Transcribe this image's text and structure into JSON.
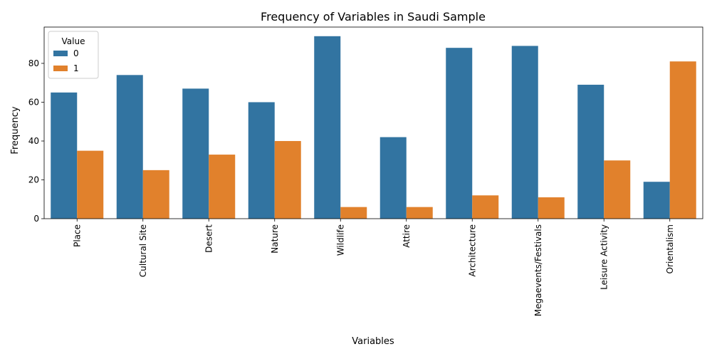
{
  "chart_data": {
    "type": "bar",
    "title": "Frequency of Variables in Saudi Sample",
    "xlabel": "Variables",
    "ylabel": "Frequency",
    "ylim": [
      0,
      98.7
    ],
    "yticks": [
      0,
      20,
      40,
      60,
      80
    ],
    "categories": [
      "Place",
      "Cultural Site",
      "Desert",
      "Nature",
      "Wildlife",
      "Attire",
      "Architecture",
      "Megaevents/Festivals",
      "Leisure Activity",
      "Orientalism"
    ],
    "legend": {
      "title": "Value",
      "placement": "top-left"
    },
    "grid": false,
    "series": [
      {
        "name": "0",
        "color": "#3274a1",
        "values": [
          65,
          74,
          67,
          60,
          94,
          42,
          88,
          89,
          69,
          19
        ]
      },
      {
        "name": "1",
        "color": "#e1812c",
        "values": [
          35,
          25,
          33,
          40,
          6,
          6,
          12,
          11,
          30,
          81
        ]
      }
    ]
  }
}
